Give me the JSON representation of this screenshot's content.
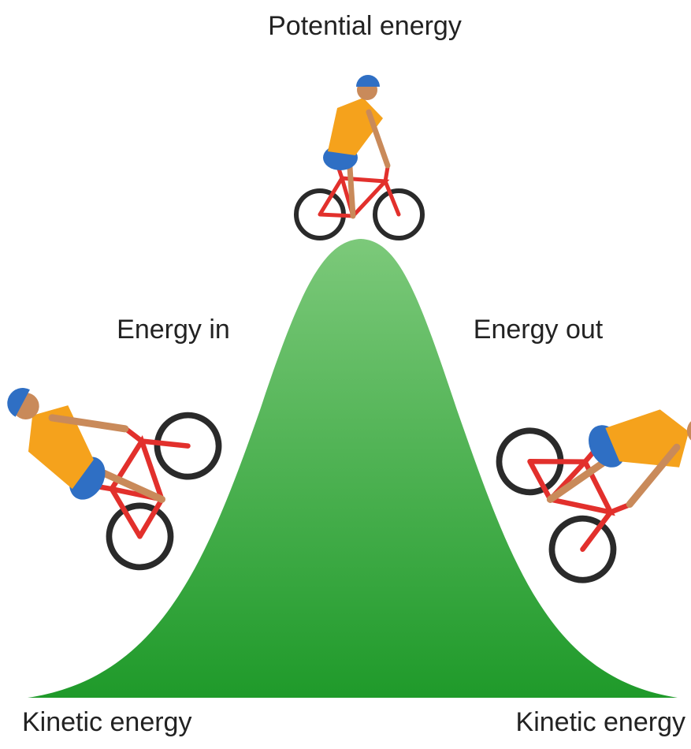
{
  "labels": {
    "top": "Potential energy",
    "left": "Energy in",
    "right": "Energy out",
    "bottom_left": "Kinetic energy",
    "bottom_right": "Kinetic energy"
  }
}
